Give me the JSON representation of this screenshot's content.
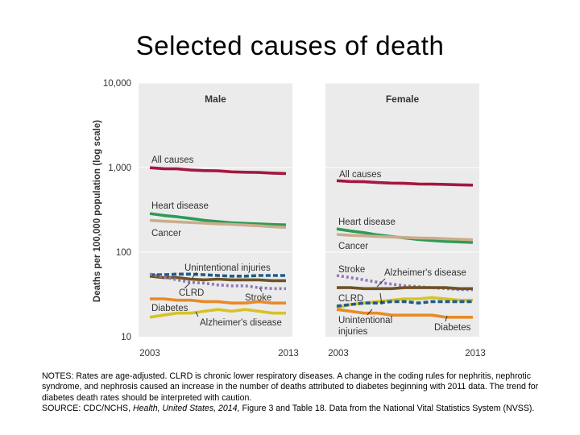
{
  "title": "Selected causes of death",
  "notes": {
    "notes_text": "NOTES: Rates are age-adjusted. CLRD is chronic lower respiratory diseases. A change in the coding rules for nephritis, nephrotic syndrome, and nephrosis caused an increase in the number of deaths attributed to diabetes beginning with 2011 data. The trend for diabetes death rates should be interpreted with caution.",
    "source_prefix": "SOURCE: CDC/NCHS, ",
    "source_italic": "Health, United States, 2014,",
    "source_suffix": " Figure 3 and Table 18. Data from the National Vital Statistics System (NVSS)."
  },
  "colors": {
    "all_causes": "#a3183f",
    "heart_disease": "#2f9a55",
    "cancer": "#c9ad8c",
    "unintentional_injuries": "#1e5c8c",
    "clrd": "#6e5324",
    "stroke": "#9079b5",
    "diabetes": "#e98a26",
    "alzheimers": "#d6c322",
    "panel_bg": "#ebebec"
  },
  "chart_data": [
    {
      "type": "line",
      "panel_label": "Male",
      "ylabel": "Deaths per 100,000 population (log scale)",
      "yscale": "log",
      "ylim": [
        10,
        10000
      ],
      "yticks": [
        10,
        100,
        1000,
        10000
      ],
      "ytick_labels": [
        "10",
        "100",
        "1,000",
        "10,000"
      ],
      "x": [
        2003,
        2004,
        2005,
        2006,
        2007,
        2008,
        2009,
        2010,
        2011,
        2012,
        2013
      ],
      "xtick_labels": [
        "2003",
        "2013"
      ],
      "series": [
        {
          "key": "all_causes",
          "name": "All causes",
          "values": [
            995,
            970,
            965,
            935,
            920,
            915,
            890,
            880,
            875,
            860,
            850
          ]
        },
        {
          "key": "heart_disease",
          "name": "Heart disease",
          "values": [
            286,
            272,
            262,
            250,
            238,
            230,
            222,
            219,
            216,
            212,
            210
          ]
        },
        {
          "key": "cancer",
          "name": "Cancer",
          "values": [
            238,
            232,
            228,
            224,
            220,
            216,
            213,
            209,
            205,
            200,
            196
          ]
        },
        {
          "key": "unintentional_injuries",
          "name": "Unintentional injuries",
          "values": [
            54,
            54,
            55,
            55,
            54,
            53,
            52,
            52,
            53,
            53,
            53
          ]
        },
        {
          "key": "clrd",
          "name": "CLRD",
          "values": [
            52,
            50,
            50,
            48,
            47,
            48,
            47,
            47,
            47,
            46,
            46
          ]
        },
        {
          "key": "stroke",
          "name": "Stroke",
          "values": [
            55,
            51,
            47,
            44,
            43,
            41,
            40,
            40,
            38,
            37,
            37
          ]
        },
        {
          "key": "diabetes",
          "name": "Diabetes",
          "values": [
            28,
            28,
            27,
            27,
            26,
            26,
            25,
            25,
            26,
            25,
            25
          ]
        },
        {
          "key": "alzheimers",
          "name": "Alzheimer's disease",
          "values": [
            17,
            18,
            19,
            19,
            20,
            21,
            20,
            21,
            20,
            19,
            19
          ]
        }
      ]
    },
    {
      "type": "line",
      "panel_label": "Female",
      "yscale": "log",
      "ylim": [
        10,
        10000
      ],
      "x": [
        2003,
        2004,
        2005,
        2006,
        2007,
        2008,
        2009,
        2010,
        2011,
        2012,
        2013
      ],
      "xtick_labels": [
        "2003",
        "2013"
      ],
      "series": [
        {
          "key": "all_causes",
          "name": "All causes",
          "values": [
            700,
            685,
            680,
            665,
            655,
            650,
            640,
            636,
            632,
            626,
            620
          ]
        },
        {
          "key": "heart_disease",
          "name": "Heart disease",
          "values": [
            188,
            178,
            170,
            160,
            153,
            147,
            141,
            137,
            134,
            132,
            130
          ]
        },
        {
          "key": "cancer",
          "name": "Cancer",
          "values": [
            162,
            158,
            156,
            153,
            151,
            149,
            147,
            146,
            144,
            142,
            140
          ]
        },
        {
          "key": "stroke",
          "name": "Stroke",
          "values": [
            53,
            50,
            47,
            44,
            42,
            40,
            39,
            38,
            37,
            36,
            36
          ]
        },
        {
          "key": "alzheimers",
          "name": "Alzheimer's disease",
          "values": [
            22,
            24,
            25,
            26,
            27,
            28,
            28,
            29,
            28,
            27,
            27
          ]
        },
        {
          "key": "clrd",
          "name": "CLRD",
          "values": [
            38,
            38,
            37,
            37,
            37,
            38,
            38,
            38,
            38,
            37,
            37
          ]
        },
        {
          "key": "unintentional_injuries",
          "name": "Unintentional injuries",
          "values": [
            23,
            24,
            25,
            25,
            26,
            26,
            25,
            26,
            26,
            26,
            26
          ]
        },
        {
          "key": "diabetes",
          "name": "Diabetes",
          "values": [
            21,
            20,
            19,
            19,
            18,
            18,
            18,
            18,
            17,
            17,
            17
          ]
        }
      ]
    }
  ],
  "annotations": {
    "male": {
      "all_causes": "All causes",
      "heart_disease": "Heart disease",
      "cancer": "Cancer",
      "unintentional_injuries": "Unintentional injuries",
      "clrd": "CLRD",
      "stroke": "Stroke",
      "diabetes": "Diabetes",
      "alzheimers": "Alzheimer's disease"
    },
    "female": {
      "all_causes": "All causes",
      "heart_disease": "Heart disease",
      "cancer": "Cancer",
      "stroke": "Stroke",
      "alzheimers": "Alzheimer's disease",
      "clrd": "CLRD",
      "unintentional_line1": "Unintentional",
      "unintentional_line2": "injuries",
      "diabetes": "Diabetes"
    }
  }
}
